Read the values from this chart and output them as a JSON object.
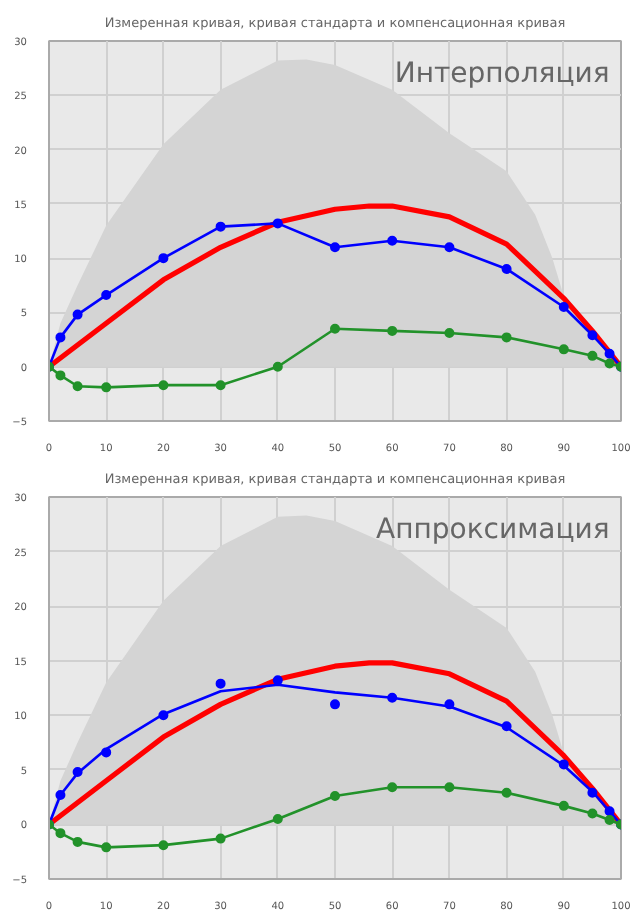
{
  "chart_data": [
    {
      "type": "line",
      "title": "Измеренная кривая, кривая стандарта и компенсационная кривая",
      "annotations": [
        "Интерполяция"
      ],
      "xlim": [
        0,
        100
      ],
      "xticks": [
        0,
        10,
        20,
        30,
        40,
        50,
        60,
        70,
        80,
        90,
        100
      ],
      "ylim": [
        -5,
        30
      ],
      "yticks": [
        -5,
        0,
        5,
        10,
        15,
        20,
        25,
        30
      ],
      "grid": true,
      "series": [
        {
          "type": "area",
          "color": "#d4d4d4",
          "x": [
            0,
            2,
            5,
            10,
            20,
            30,
            40,
            45,
            50,
            60,
            70,
            80,
            85,
            88,
            90,
            95,
            100
          ],
          "values": [
            0,
            4,
            7.5,
            13,
            20.5,
            25.5,
            28.2,
            28.3,
            27.8,
            25.5,
            21.5,
            18,
            14,
            10,
            6.5,
            3,
            0
          ]
        },
        {
          "color": "#ff0000",
          "marker": "none",
          "x": [
            0,
            10,
            20,
            30,
            40,
            50,
            56,
            60,
            70,
            80,
            90,
            95,
            100
          ],
          "values": [
            0,
            4,
            8,
            11,
            13.3,
            14.5,
            14.8,
            14.8,
            13.8,
            11.3,
            6.3,
            3.3,
            0
          ]
        },
        {
          "color": "#0000ff",
          "marker": "circle",
          "x": [
            0,
            2,
            5,
            10,
            20,
            30,
            40,
            50,
            60,
            70,
            80,
            90,
            95,
            98,
            100
          ],
          "values": [
            0,
            2.7,
            4.8,
            6.6,
            10,
            12.9,
            13.2,
            11,
            11.6,
            11,
            9,
            5.5,
            2.9,
            1.2,
            0
          ]
        },
        {
          "color": "#22922a",
          "marker": "circle",
          "x": [
            0,
            2,
            5,
            10,
            20,
            30,
            40,
            50,
            60,
            70,
            80,
            90,
            95,
            98,
            100
          ],
          "values": [
            0,
            -0.8,
            -1.8,
            -1.9,
            -1.7,
            -1.7,
            0,
            3.5,
            3.3,
            3.1,
            2.7,
            1.6,
            1,
            0.3,
            0
          ]
        }
      ]
    },
    {
      "type": "line",
      "title": "Измеренная кривая, кривая стандарта и компенсационная кривая",
      "annotations": [
        "Аппроксимация"
      ],
      "xlim": [
        0,
        100
      ],
      "xticks": [
        0,
        10,
        20,
        30,
        40,
        50,
        60,
        70,
        80,
        90,
        100
      ],
      "ylim": [
        -5,
        30
      ],
      "yticks": [
        -5,
        0,
        5,
        10,
        15,
        20,
        25,
        30
      ],
      "grid": true,
      "series": [
        {
          "type": "area",
          "color": "#d4d4d4",
          "x": [
            0,
            2,
            5,
            10,
            20,
            30,
            40,
            45,
            50,
            60,
            70,
            80,
            85,
            88,
            90,
            95,
            100
          ],
          "values": [
            0,
            4,
            7.5,
            13,
            20.5,
            25.5,
            28.2,
            28.3,
            27.8,
            25.5,
            21.5,
            18,
            14,
            10,
            6.5,
            3,
            0
          ]
        },
        {
          "color": "#ff0000",
          "marker": "none",
          "x": [
            0,
            10,
            20,
            30,
            40,
            50,
            56,
            60,
            70,
            80,
            90,
            95,
            100
          ],
          "values": [
            0,
            4,
            8,
            11,
            13.3,
            14.5,
            14.8,
            14.8,
            13.8,
            11.3,
            6.3,
            3.3,
            0
          ]
        },
        {
          "color": "#0000ff",
          "marker": "none",
          "x": [
            0,
            2,
            5,
            10,
            20,
            30,
            40,
            50,
            60,
            70,
            80,
            90,
            95,
            100
          ],
          "values": [
            0,
            2.7,
            4.7,
            6.9,
            10.1,
            12.2,
            12.8,
            12.1,
            11.6,
            10.8,
            8.9,
            5.4,
            3,
            0
          ]
        },
        {
          "type": "scatter",
          "color": "#0000ff",
          "marker": "circle",
          "x": [
            0,
            2,
            5,
            10,
            20,
            30,
            40,
            50,
            60,
            70,
            80,
            90,
            95,
            98,
            100
          ],
          "values": [
            0,
            2.7,
            4.8,
            6.6,
            10,
            12.9,
            13.2,
            11,
            11.6,
            11,
            9,
            5.5,
            2.9,
            1.2,
            0
          ]
        },
        {
          "color": "#22922a",
          "marker": "circle",
          "x": [
            0,
            2,
            5,
            10,
            20,
            30,
            40,
            50,
            60,
            70,
            80,
            90,
            95,
            98,
            100
          ],
          "values": [
            0,
            -0.8,
            -1.6,
            -2.1,
            -1.9,
            -1.3,
            0.5,
            2.6,
            3.4,
            3.4,
            2.9,
            1.7,
            1,
            0.4,
            0
          ]
        }
      ]
    }
  ]
}
